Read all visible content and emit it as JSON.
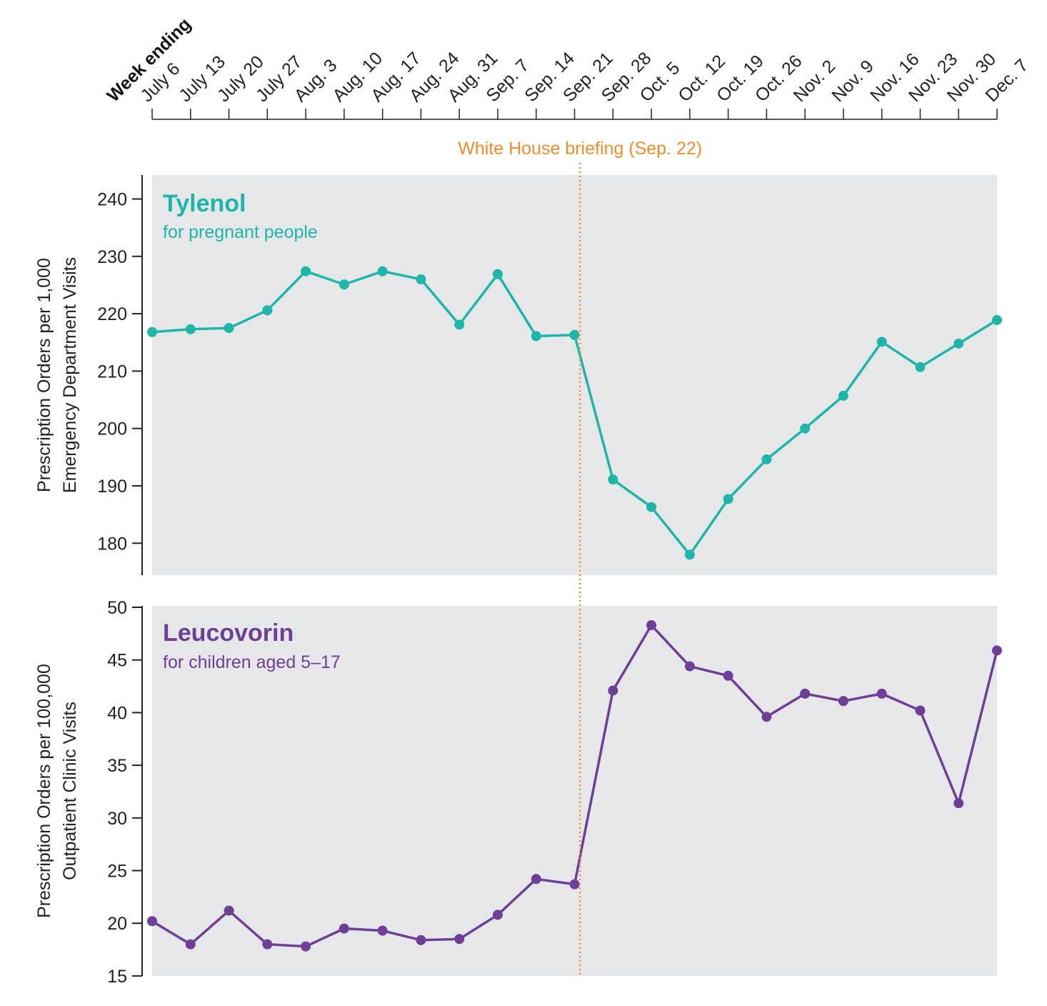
{
  "chart_data": [
    {
      "type": "line",
      "title": "Tylenol",
      "subtitle": "for pregnant people",
      "xlabel": "Week ending",
      "ylabel": "Prescription Orders per 1,000\nEmergency Department Visits",
      "ylim": [
        174,
        244
      ],
      "yticks": [
        180,
        190,
        200,
        210,
        220,
        230,
        240
      ],
      "color": "#1fb5a9",
      "x": [
        "July 6",
        "July 13",
        "July 20",
        "July 27",
        "Aug. 3",
        "Aug. 10",
        "Aug. 17",
        "Aug. 24",
        "Aug. 31",
        "Sep. 7",
        "Sep. 14",
        "Sep. 21",
        "Sep. 28",
        "Oct. 5",
        "Oct. 12",
        "Oct. 19",
        "Oct. 26",
        "Nov. 2",
        "Nov. 9",
        "Nov. 16",
        "Nov. 23",
        "Nov. 30",
        "Dec. 7"
      ],
      "values": [
        216.8,
        217.3,
        217.5,
        220.6,
        227.4,
        225.1,
        227.4,
        226.0,
        218.1,
        226.9,
        216.1,
        216.3,
        191.1,
        186.3,
        178.0,
        187.7,
        194.6,
        200.0,
        205.7,
        215.1,
        210.7,
        214.8,
        218.9
      ],
      "annotation": {
        "label": "White House briefing (Sep. 22)",
        "at": "Sep. 22",
        "color": "#f28c28"
      }
    },
    {
      "type": "line",
      "title": "Leucovorin",
      "subtitle": "for children aged 5–17",
      "ylabel": "Prescription Orders per 100,000\nOutpatient Clinic Visits",
      "ylim": [
        15,
        50
      ],
      "yticks": [
        15,
        20,
        25,
        30,
        35,
        40,
        45,
        50
      ],
      "color": "#6f3f98",
      "x": [
        "July 6",
        "July 13",
        "July 20",
        "July 27",
        "Aug. 3",
        "Aug. 10",
        "Aug. 17",
        "Aug. 24",
        "Aug. 31",
        "Sep. 7",
        "Sep. 14",
        "Sep. 21",
        "Sep. 28",
        "Oct. 5",
        "Oct. 12",
        "Oct. 19",
        "Oct. 26",
        "Nov. 2",
        "Nov. 9",
        "Nov. 16",
        "Nov. 23",
        "Nov. 30",
        "Dec. 7"
      ],
      "values": [
        20.2,
        18.0,
        21.2,
        18.0,
        17.8,
        19.5,
        19.3,
        18.4,
        18.5,
        20.8,
        24.2,
        23.7,
        42.1,
        48.3,
        44.4,
        43.5,
        39.6,
        41.8,
        41.1,
        41.8,
        40.2,
        31.4,
        45.9
      ]
    }
  ]
}
